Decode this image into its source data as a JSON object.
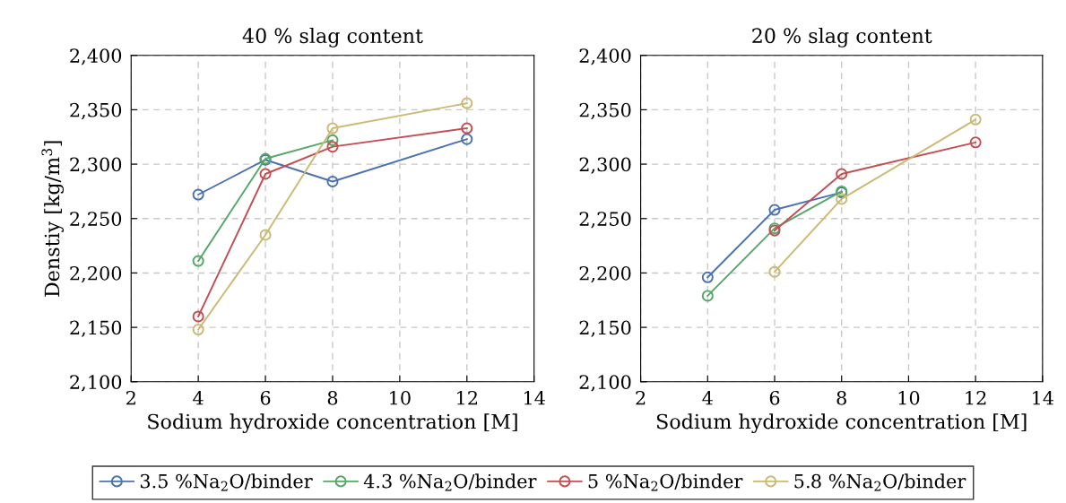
{
  "chart_data": [
    {
      "type": "line",
      "title": "40 % slag content",
      "xlabel": "Sodium hydroxide concentration [M]",
      "ylabel": "Denstiy [kg/m$^{3}$]",
      "xlim": [
        2,
        14
      ],
      "xticks": [
        2,
        4,
        6,
        8,
        10,
        12,
        14
      ],
      "ylim": [
        2100,
        2400
      ],
      "yticks": [
        {
          "value": 2100,
          "label": "2,100"
        },
        {
          "value": 2150,
          "label": "2,150"
        },
        {
          "value": 2200,
          "label": "2,200"
        },
        {
          "value": 2250,
          "label": "2,250"
        },
        {
          "value": 2300,
          "label": "2,300"
        },
        {
          "value": 2350,
          "label": "2,350"
        },
        {
          "value": 2400,
          "label": "2,400"
        }
      ],
      "grid": true,
      "marker": "circle",
      "line_style": "solid",
      "legend": "bottom",
      "series": [
        {
          "name": "3.5 %Na$_{2}$O/binder",
          "color": "#4c72b0",
          "x": [
            4,
            6,
            8,
            12
          ],
          "values": [
            2272,
            2304,
            2284,
            2323
          ]
        },
        {
          "name": "4.3 %Na$_{2}$O/binder",
          "color": "#55a868",
          "x": [
            4,
            6,
            8
          ],
          "values": [
            2211,
            2305,
            2322
          ]
        },
        {
          "name": "5 %Na$_{2}$O/binder",
          "color": "#c44e52",
          "x": [
            4,
            6,
            8,
            12
          ],
          "values": [
            2160,
            2291,
            2316,
            2333
          ]
        },
        {
          "name": "5.8 %Na$_{2}$O/binder",
          "color": "#ccb974",
          "x": [
            4,
            6,
            8,
            12
          ],
          "values": [
            2148,
            2235,
            2333,
            2356
          ]
        }
      ]
    },
    {
      "type": "line",
      "title": "20 % slag content",
      "xlabel": "Sodium hydroxide concentration [M]",
      "xlim": [
        2,
        14
      ],
      "xticks": [
        2,
        4,
        6,
        8,
        10,
        12,
        14
      ],
      "ylim": [
        2100,
        2400
      ],
      "yticks": [
        {
          "value": 2100,
          "label": "2,100"
        },
        {
          "value": 2150,
          "label": "2,150"
        },
        {
          "value": 2200,
          "label": "2,200"
        },
        {
          "value": 2250,
          "label": "2,250"
        },
        {
          "value": 2300,
          "label": "2,300"
        },
        {
          "value": 2350,
          "label": "2,350"
        },
        {
          "value": 2400,
          "label": "2,400"
        }
      ],
      "grid": true,
      "marker": "circle",
      "line_style": "solid",
      "series": [
        {
          "color": "#4c72b0",
          "x": [
            4,
            6,
            8
          ],
          "values": [
            2196,
            2258,
            2274
          ]
        },
        {
          "color": "#55a868",
          "x": [
            4,
            6,
            8
          ],
          "values": [
            2179,
            2241,
            2275
          ]
        },
        {
          "color": "#c44e52",
          "x": [
            6,
            8,
            12
          ],
          "values": [
            2239,
            2291,
            2320
          ]
        },
        {
          "color": "#ccb974",
          "x": [
            6,
            8,
            12
          ],
          "values": [
            2201,
            2268,
            2341
          ]
        }
      ]
    }
  ]
}
